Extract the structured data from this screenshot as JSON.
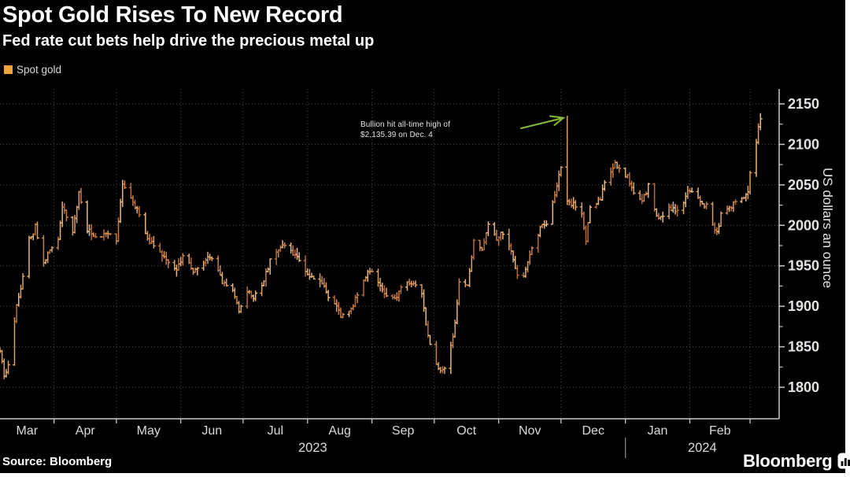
{
  "header": {
    "title": "Spot Gold Rises To New Record",
    "subtitle": "Fed rate cut bets help drive the precious metal up"
  },
  "legend": {
    "label": "Spot gold",
    "swatch_color": "#f2a33c"
  },
  "annotation": {
    "line1": "Bullion hit all-time high of",
    "line2": "$2,135.39 on Dec. 4",
    "arrow_color": "#85ba38"
  },
  "footer": {
    "source": "Source: Bloomberg",
    "brand": "Bloomberg"
  },
  "chart_data": {
    "type": "ohlc",
    "title": "Spot Gold Rises To New Record",
    "series_name": "Spot gold",
    "ylabel": "US dollars an ounce",
    "y_ticks": [
      1800,
      1850,
      1900,
      1950,
      2000,
      2050,
      2100,
      2150
    ],
    "y_minor_step": 25,
    "ylim": [
      1790,
      2160
    ],
    "grid": "dotted",
    "legend_position": "top-left",
    "x_months": [
      "Mar",
      "Apr",
      "May",
      "Jun",
      "Jul",
      "Aug",
      "Sep",
      "Oct",
      "Nov",
      "Dec",
      "Jan",
      "Feb"
    ],
    "x_years": [
      {
        "label": "2023",
        "starts": "2023-03-06"
      },
      {
        "label": "2024",
        "starts": "2024-01-01"
      }
    ],
    "date_start": "2023-03-06",
    "date_end": "2024-03-06",
    "bar_palette": [
      "#b76b36",
      "#c98049",
      "#dba066",
      "#e8b57e"
    ],
    "price_path": [
      [
        "2023-03-06",
        1846
      ],
      [
        "2023-03-08",
        1812
      ],
      [
        "2023-03-10",
        1830
      ],
      [
        "2023-03-14",
        1902
      ],
      [
        "2023-03-16",
        1920
      ],
      [
        "2023-03-20",
        1982
      ],
      [
        "2023-03-23",
        1998
      ],
      [
        "2023-03-27",
        1955
      ],
      [
        "2023-03-29",
        1964
      ],
      [
        "2023-04-03",
        1984
      ],
      [
        "2023-04-05",
        2022
      ],
      [
        "2023-04-10",
        1992
      ],
      [
        "2023-04-13",
        2040
      ],
      [
        "2023-04-17",
        1995
      ],
      [
        "2023-04-21",
        1983
      ],
      [
        "2023-04-26",
        1990
      ],
      [
        "2023-05-01",
        1982
      ],
      [
        "2023-05-04",
        2052
      ],
      [
        "2023-05-09",
        2030
      ],
      [
        "2023-05-12",
        2012
      ],
      [
        "2023-05-17",
        1980
      ],
      [
        "2023-05-19",
        1978
      ],
      [
        "2023-05-24",
        1958
      ],
      [
        "2023-05-30",
        1944
      ],
      [
        "2023-06-02",
        1965
      ],
      [
        "2023-06-07",
        1943
      ],
      [
        "2023-06-13",
        1958
      ],
      [
        "2023-06-16",
        1960
      ],
      [
        "2023-06-21",
        1930
      ],
      [
        "2023-06-26",
        1923
      ],
      [
        "2023-06-29",
        1895
      ],
      [
        "2023-07-03",
        1920
      ],
      [
        "2023-07-06",
        1912
      ],
      [
        "2023-07-11",
        1932
      ],
      [
        "2023-07-14",
        1955
      ],
      [
        "2023-07-20",
        1978
      ],
      [
        "2023-07-25",
        1963
      ],
      [
        "2023-07-28",
        1958
      ],
      [
        "2023-08-02",
        1938
      ],
      [
        "2023-08-07",
        1935
      ],
      [
        "2023-08-11",
        1913
      ],
      [
        "2023-08-17",
        1890
      ],
      [
        "2023-08-22",
        1898
      ],
      [
        "2023-08-25",
        1913
      ],
      [
        "2023-08-30",
        1940
      ],
      [
        "2023-09-01",
        1940
      ],
      [
        "2023-09-06",
        1918
      ],
      [
        "2023-09-12",
        1910
      ],
      [
        "2023-09-15",
        1923
      ],
      [
        "2023-09-20",
        1930
      ],
      [
        "2023-09-25",
        1915
      ],
      [
        "2023-09-27",
        1875
      ],
      [
        "2023-09-29",
        1850
      ],
      [
        "2023-10-03",
        1823
      ],
      [
        "2023-10-06",
        1820
      ],
      [
        "2023-10-10",
        1860
      ],
      [
        "2023-10-13",
        1930
      ],
      [
        "2023-10-17",
        1928
      ],
      [
        "2023-10-20",
        1980
      ],
      [
        "2023-10-24",
        1970
      ],
      [
        "2023-10-27",
        2000
      ],
      [
        "2023-10-31",
        1984
      ],
      [
        "2023-11-03",
        1990
      ],
      [
        "2023-11-07",
        1968
      ],
      [
        "2023-11-10",
        1938
      ],
      [
        "2023-11-13",
        1938
      ],
      [
        "2023-11-16",
        1962
      ],
      [
        "2023-11-21",
        1996
      ],
      [
        "2023-11-24",
        2001
      ],
      [
        "2023-11-28",
        2040
      ],
      [
        "2023-12-01",
        2070
      ],
      [
        "2023-12-04",
        2080
      ],
      [
        "2023-12-05",
        2026
      ],
      [
        "2023-12-07",
        2028
      ],
      [
        "2023-12-11",
        2014
      ],
      [
        "2023-12-13",
        1980
      ],
      [
        "2023-12-15",
        2020
      ],
      [
        "2023-12-20",
        2032
      ],
      [
        "2023-12-22",
        2052
      ],
      [
        "2023-12-27",
        2078
      ],
      [
        "2023-12-28",
        2072
      ],
      [
        "2024-01-02",
        2060
      ],
      [
        "2024-01-05",
        2043
      ],
      [
        "2024-01-09",
        2030
      ],
      [
        "2024-01-12",
        2048
      ],
      [
        "2024-01-17",
        2006
      ],
      [
        "2024-01-22",
        2021
      ],
      [
        "2024-01-26",
        2018
      ],
      [
        "2024-01-31",
        2040
      ],
      [
        "2024-02-02",
        2040
      ],
      [
        "2024-02-06",
        2028
      ],
      [
        "2024-02-09",
        2024
      ],
      [
        "2024-02-14",
        1990
      ],
      [
        "2024-02-16",
        2013
      ],
      [
        "2024-02-21",
        2025
      ],
      [
        "2024-02-26",
        2031
      ],
      [
        "2024-02-29",
        2044
      ],
      [
        "2024-03-01",
        2066
      ],
      [
        "2024-03-04",
        2100
      ],
      [
        "2024-03-05",
        2120
      ],
      [
        "2024-03-06",
        2134
      ]
    ],
    "highlight_bar": {
      "date": "2023-12-04",
      "open": 2072,
      "high": 2135.39,
      "low": 2025,
      "close": 2030
    }
  }
}
